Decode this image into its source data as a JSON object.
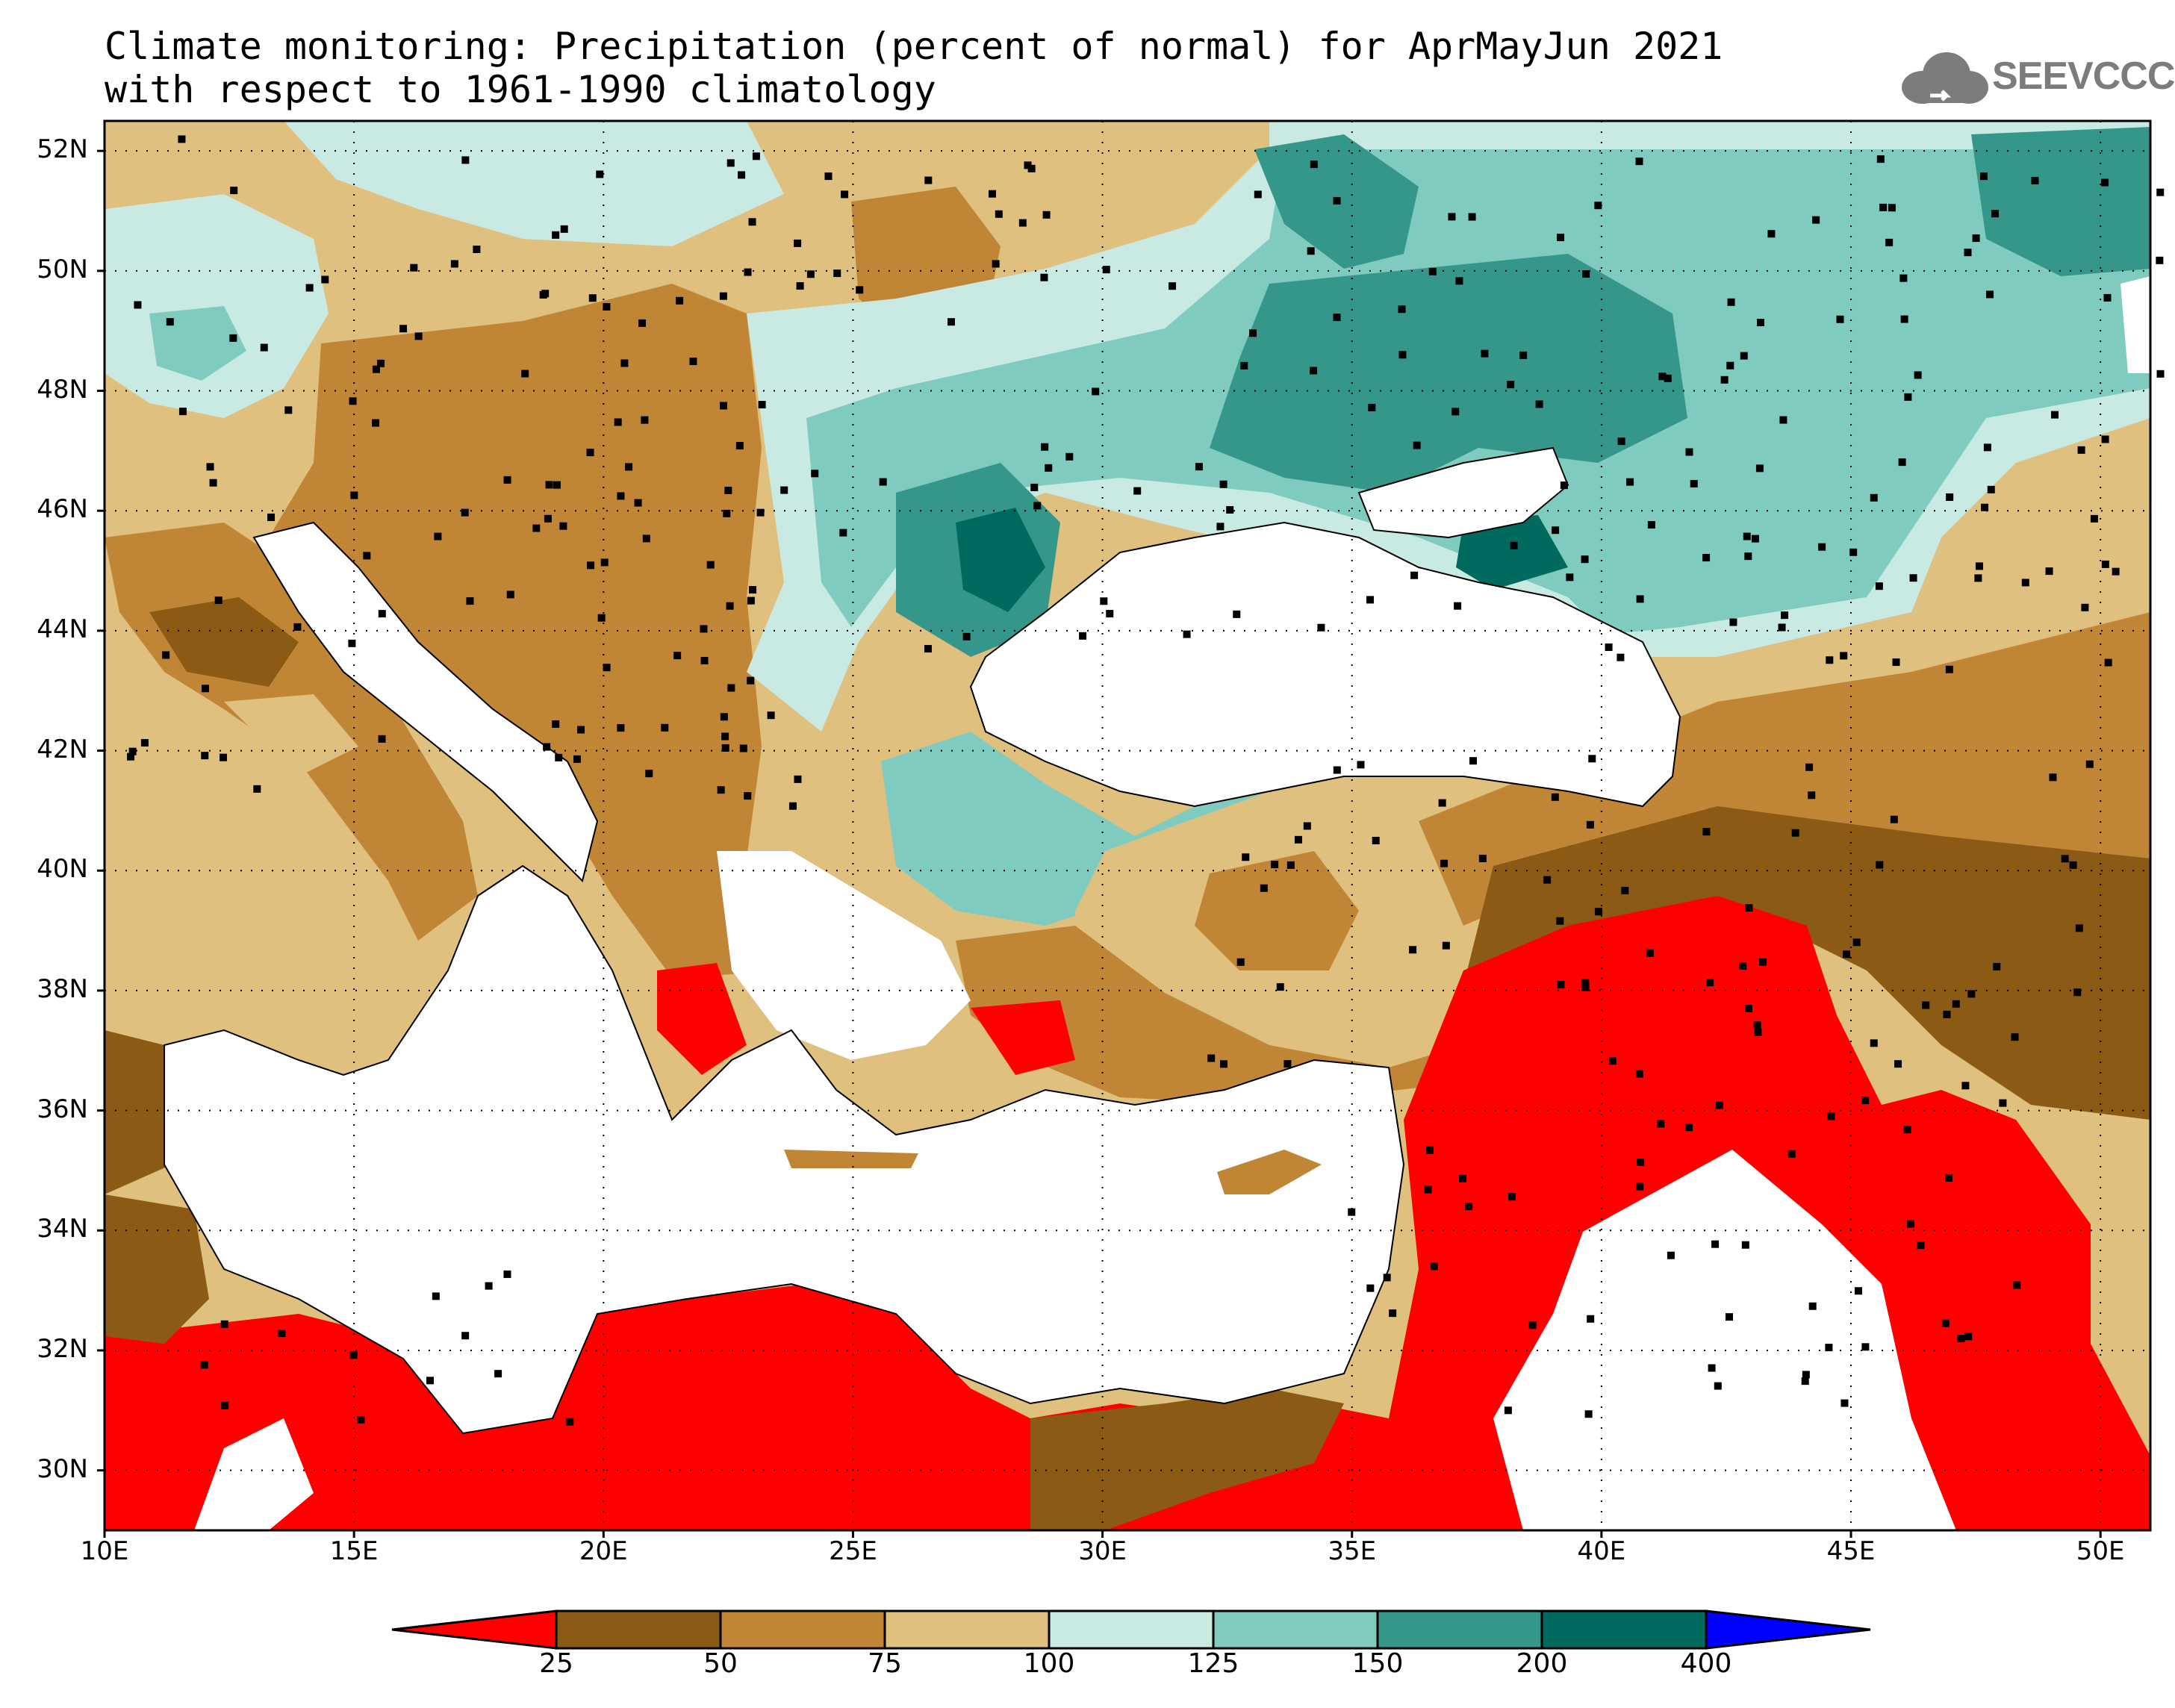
{
  "title": {
    "line1": "Climate monitoring: Precipitation (percent of normal) for AprMayJun 2021",
    "line2": "with respect to 1961-1990 climatology"
  },
  "logo": {
    "text": "SEEVCCC",
    "icon": "cloud-icon"
  },
  "map": {
    "lon_range": [
      10,
      51
    ],
    "lat_range": [
      29,
      52.5
    ],
    "lat_labels": [
      "52N",
      "50N",
      "48N",
      "46N",
      "44N",
      "42N",
      "40N",
      "38N",
      "36N",
      "34N",
      "32N",
      "30N"
    ],
    "lon_labels": [
      "10E",
      "15E",
      "20E",
      "25E",
      "30E",
      "35E",
      "40E",
      "45E",
      "50E"
    ],
    "gridlines": "dotted"
  },
  "colorbar": {
    "labels": [
      "25",
      "50",
      "75",
      "100",
      "125",
      "150",
      "200",
      "400"
    ],
    "colors": [
      "#ff0000",
      "#8b5a14",
      "#c08535",
      "#dfc07e",
      "#c8eae3",
      "#80cbc0",
      "#35968a",
      "#006a5e",
      "#0000ff"
    ]
  }
}
